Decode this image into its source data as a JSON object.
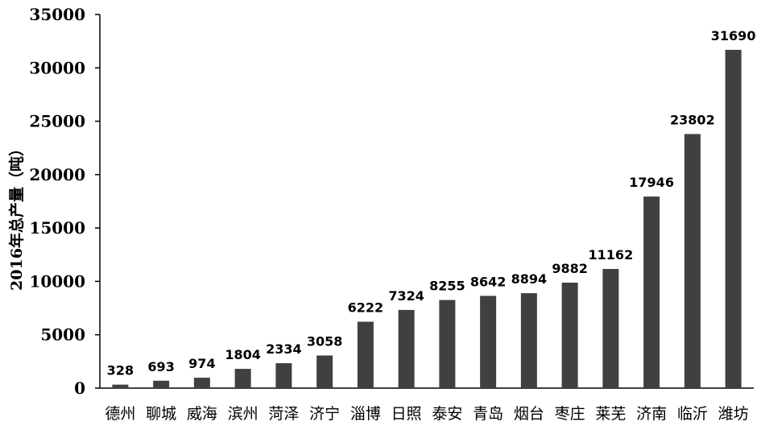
{
  "chart_data": {
    "type": "bar",
    "title": "",
    "xlabel": "",
    "ylabel": "2016年总产量（吨）",
    "ylim": [
      0,
      35000
    ],
    "yticks": [
      0,
      5000,
      10000,
      15000,
      20000,
      25000,
      30000,
      35000
    ],
    "grid": false,
    "categories": [
      "德州",
      "聊城",
      "威海",
      "滨州",
      "菏泽",
      "济宁",
      "淄博",
      "日照",
      "泰安",
      "青岛",
      "烟台",
      "枣庄",
      "莱芜",
      "济南",
      "临沂",
      "潍坊"
    ],
    "values": [
      328,
      693,
      974,
      1804,
      2334,
      3058,
      6222,
      7324,
      8255,
      8642,
      8894,
      9882,
      11162,
      17946,
      23802,
      31690
    ],
    "colors": {
      "bar": "#404040",
      "axis": "#000000"
    }
  }
}
